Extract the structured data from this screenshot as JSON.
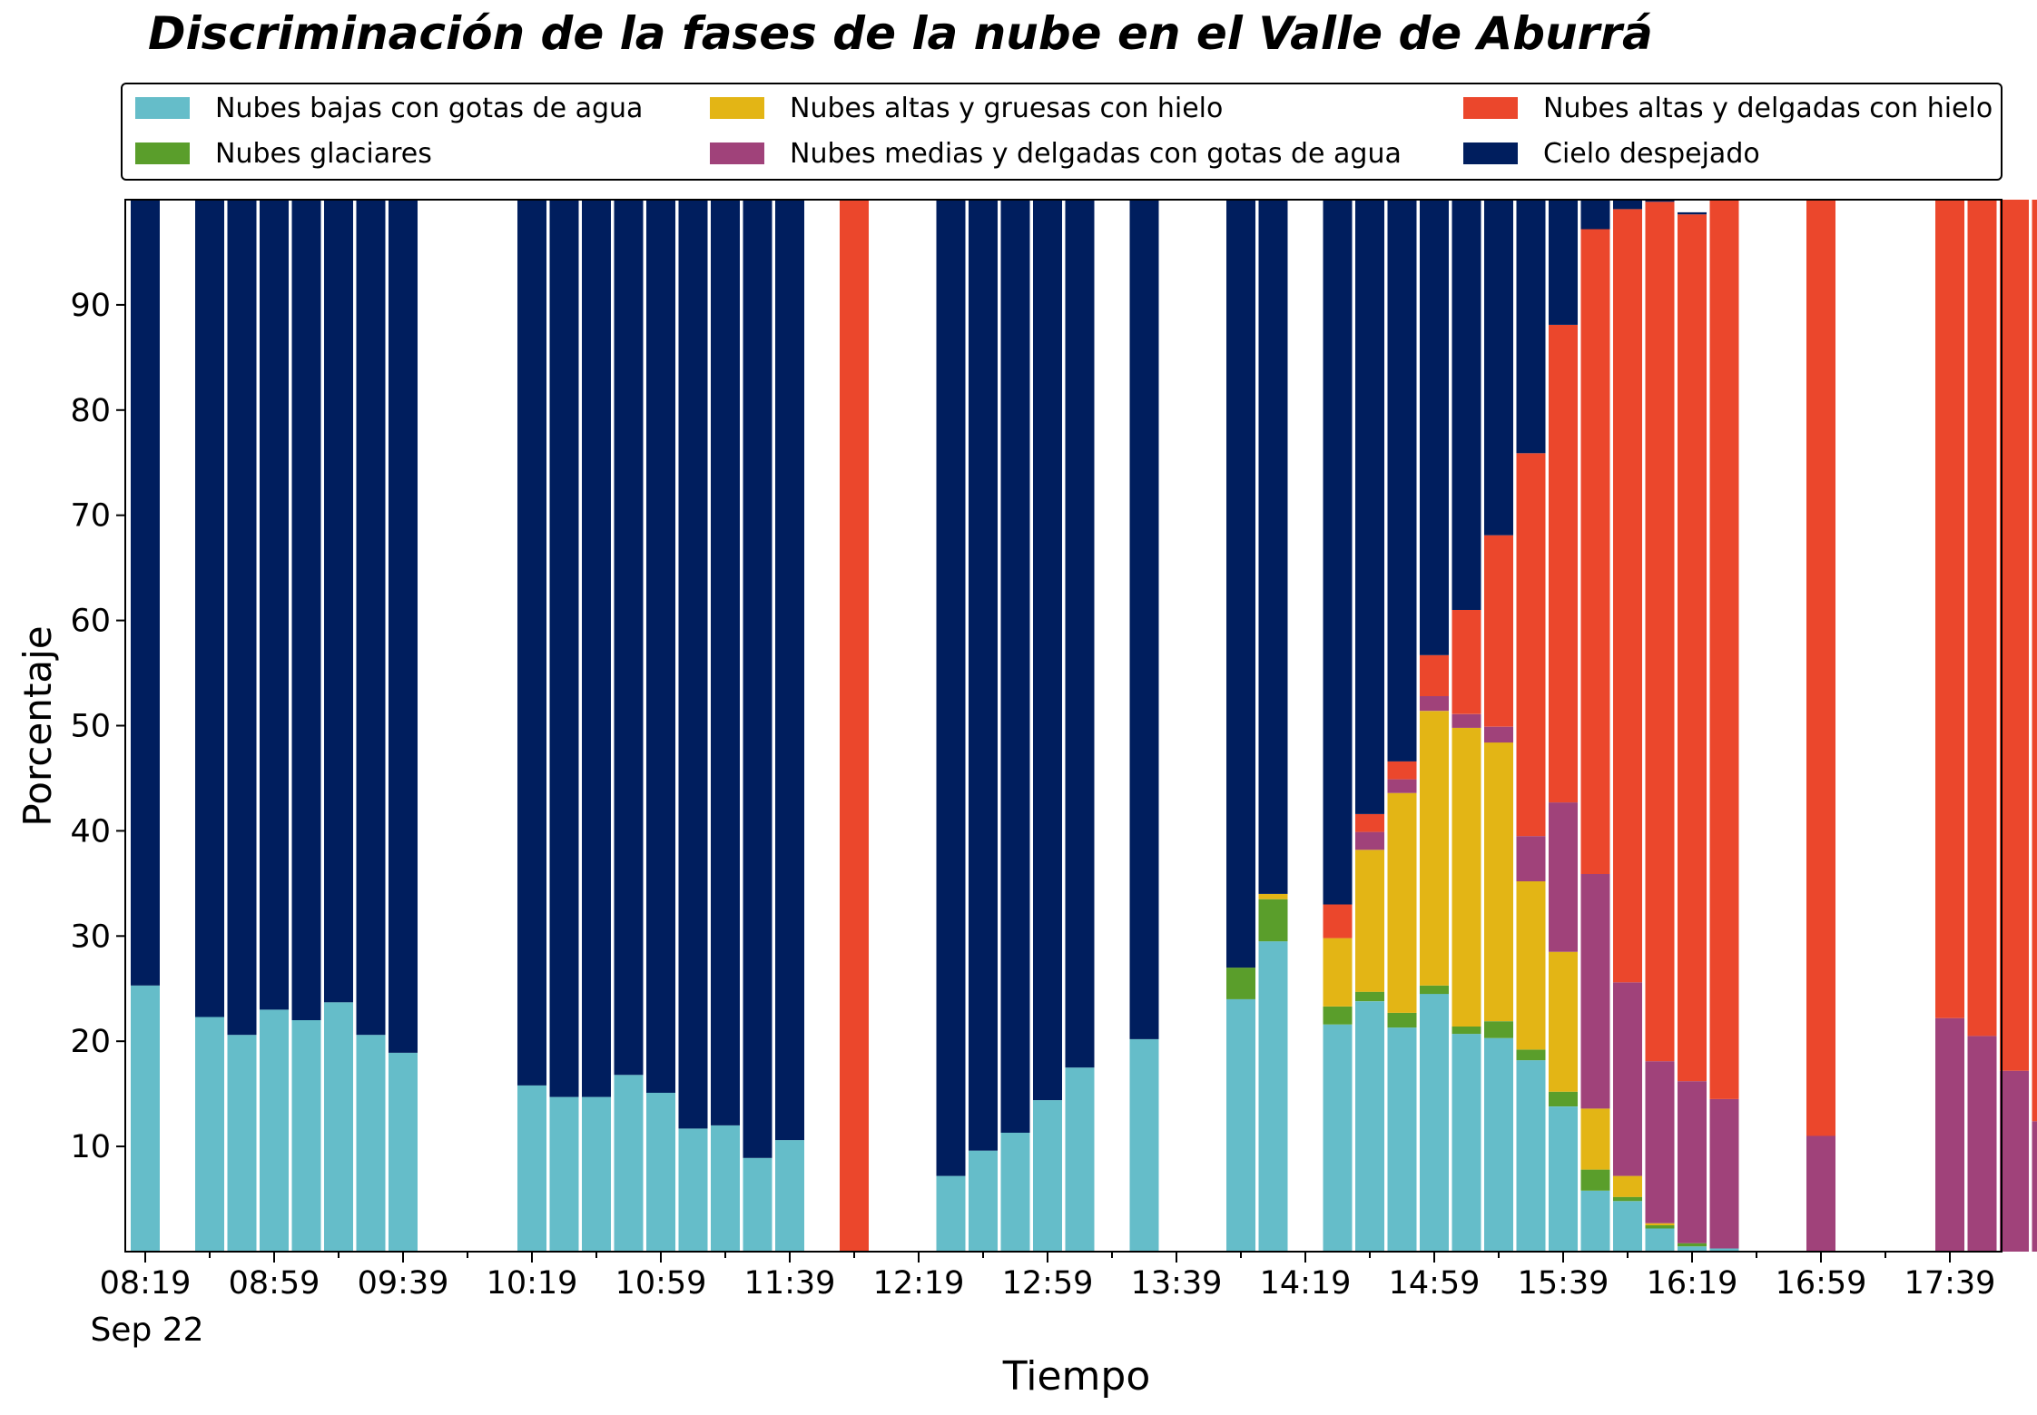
{
  "chart_data": {
    "type": "bar",
    "stacked": true,
    "title": "Discriminación de la fases de la nube en el Valle de Aburrá",
    "xlabel": "Tiempo",
    "ylabel": "Porcentaje",
    "ylim": [
      0,
      100
    ],
    "yticks": [
      10,
      20,
      30,
      40,
      50,
      60,
      70,
      80,
      90
    ],
    "x_tick_labels": [
      "08:19",
      "08:59",
      "09:39",
      "10:19",
      "10:59",
      "11:39",
      "12:19",
      "12:59",
      "13:39",
      "14:19",
      "14:59",
      "15:39",
      "16:19",
      "16:59",
      "17:39"
    ],
    "x_date_label": "Sep 22",
    "x_start": "08:19",
    "x_interval_minutes": 10,
    "legend_position": "top",
    "grid": false,
    "series": [
      {
        "name": "Nubes bajas con gotas de agua",
        "color": "#65BDC9",
        "values": [
          25.3,
          null,
          22.3,
          20.6,
          23.0,
          22.0,
          23.7,
          20.6,
          18.9,
          null,
          null,
          null,
          15.8,
          14.7,
          14.7,
          16.8,
          15.1,
          11.7,
          12.0,
          8.9,
          10.6,
          null,
          0,
          null,
          null,
          7.2,
          9.6,
          11.3,
          14.4,
          17.5,
          null,
          20.2,
          null,
          null,
          24.0,
          29.5,
          null,
          21.6,
          23.8,
          21.3,
          24.5,
          20.7,
          20.3,
          18.2,
          13.8,
          5.8,
          4.8,
          2.2,
          0.5,
          0.3,
          null,
          null,
          0,
          null,
          null,
          null,
          0,
          0,
          0,
          0
        ]
      },
      {
        "name": "Nubes glaciares",
        "color": "#5A9E2B",
        "values": [
          0,
          null,
          0,
          0,
          0,
          0,
          0,
          0,
          0,
          null,
          null,
          null,
          0,
          0,
          0,
          0,
          0,
          0,
          0,
          0,
          0,
          null,
          0,
          null,
          null,
          0,
          0,
          0,
          0,
          0,
          null,
          0,
          null,
          null,
          3.0,
          4.0,
          null,
          1.7,
          0.9,
          1.4,
          0.8,
          0.7,
          1.6,
          1.0,
          1.4,
          2.0,
          0.4,
          0.3,
          0.3,
          0,
          null,
          null,
          0,
          null,
          null,
          null,
          0,
          0,
          0,
          0
        ]
      },
      {
        "name": "Nubes altas y gruesas con hielo",
        "color": "#E3B515",
        "values": [
          0,
          null,
          0,
          0,
          0,
          0,
          0,
          0,
          0,
          null,
          null,
          null,
          0,
          0,
          0,
          0,
          0,
          0,
          0,
          0,
          0,
          null,
          0,
          null,
          null,
          0,
          0,
          0,
          0,
          0,
          null,
          0,
          null,
          null,
          0,
          0.5,
          null,
          6.5,
          13.5,
          20.9,
          26.1,
          28.4,
          26.5,
          16.0,
          13.3,
          5.8,
          2.0,
          0.2,
          0,
          0,
          null,
          null,
          0,
          null,
          null,
          null,
          0,
          0,
          0,
          0
        ]
      },
      {
        "name": "Nubes medias y delgadas con gotas de agua",
        "color": "#A0427A",
        "values": [
          0,
          null,
          0,
          0,
          0,
          0,
          0,
          0,
          0,
          null,
          null,
          null,
          0,
          0,
          0,
          0,
          0,
          0,
          0,
          0,
          0,
          null,
          0,
          null,
          null,
          0,
          0,
          0,
          0,
          0,
          null,
          0,
          null,
          null,
          0,
          0,
          null,
          0,
          1.7,
          1.3,
          1.4,
          1.3,
          1.5,
          4.3,
          14.2,
          22.3,
          18.4,
          15.4,
          15.4,
          14.2,
          null,
          null,
          11.0,
          null,
          null,
          null,
          22.2,
          20.5,
          17.2,
          12.4
        ]
      },
      {
        "name": "Nubes altas y delgadas con hielo",
        "color": "#EB472C",
        "values": [
          0,
          null,
          0,
          0,
          0,
          0,
          0,
          0,
          0,
          null,
          null,
          null,
          0,
          0,
          0,
          0,
          0,
          0,
          0,
          0,
          0,
          null,
          100,
          null,
          null,
          0,
          0,
          0,
          0,
          0,
          null,
          0,
          null,
          null,
          0,
          0,
          null,
          3.2,
          1.7,
          1.7,
          3.9,
          9.9,
          18.2,
          36.4,
          45.4,
          61.3,
          73.5,
          81.7,
          82.4,
          85.5,
          null,
          null,
          89.0,
          null,
          null,
          null,
          77.8,
          79.5,
          82.8,
          87.6
        ]
      },
      {
        "name": "Cielo despejado",
        "color": "#001E5E",
        "values": [
          74.7,
          null,
          77.7,
          79.4,
          77.0,
          78.0,
          76.3,
          79.4,
          81.1,
          null,
          null,
          null,
          84.2,
          85.3,
          85.3,
          83.2,
          84.9,
          88.3,
          88.0,
          91.1,
          89.4,
          null,
          0,
          null,
          null,
          92.8,
          90.4,
          88.7,
          85.6,
          82.5,
          null,
          79.8,
          null,
          null,
          73.0,
          66.0,
          null,
          67.0,
          58.4,
          53.4,
          43.3,
          39.0,
          31.9,
          24.1,
          12.0,
          2.8,
          0.9,
          0.4,
          0.2,
          0,
          null,
          null,
          0,
          null,
          null,
          null,
          0,
          0,
          0,
          0
        ]
      }
    ]
  }
}
